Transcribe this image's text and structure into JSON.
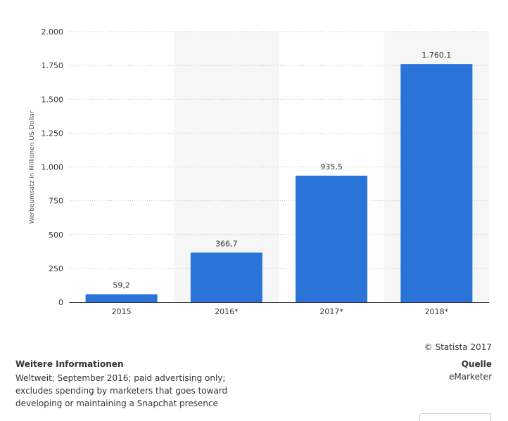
{
  "chart_data": {
    "type": "bar",
    "categories": [
      "2015",
      "2016*",
      "2017*",
      "2018*"
    ],
    "values": [
      59.2,
      366.7,
      935.5,
      1760.1
    ],
    "value_labels": [
      "59,2",
      "366,7",
      "935,5",
      "1.760,1"
    ],
    "ylabel": "Werbeumsatz in Millionen US-Dollar",
    "ylim": [
      0,
      2000
    ],
    "yticks": [
      0,
      250,
      500,
      750,
      1000,
      1250,
      1500,
      1750,
      2000
    ],
    "ytick_labels": [
      "0",
      "250",
      "500",
      "750",
      "1.000",
      "1.250",
      "1.500",
      "1.750",
      "2.000"
    ],
    "grid": true,
    "forecast_shading_categories": [
      "2016*",
      "2018*"
    ],
    "colors": {
      "bar": "#2a74d9",
      "shade": "#f6f6f6",
      "grid": "#c8c8c8",
      "axis": "#333333"
    }
  },
  "copyright": "© Statista 2017",
  "info": {
    "title": "Weitere Informationen",
    "lines": [
      "Weltweit; September 2016; paid advertising only;",
      "excludes spending by marketers that goes toward",
      "developing or maintaining a Snapchat presence"
    ]
  },
  "source": {
    "title": "Quelle",
    "text": "eMarketer"
  }
}
